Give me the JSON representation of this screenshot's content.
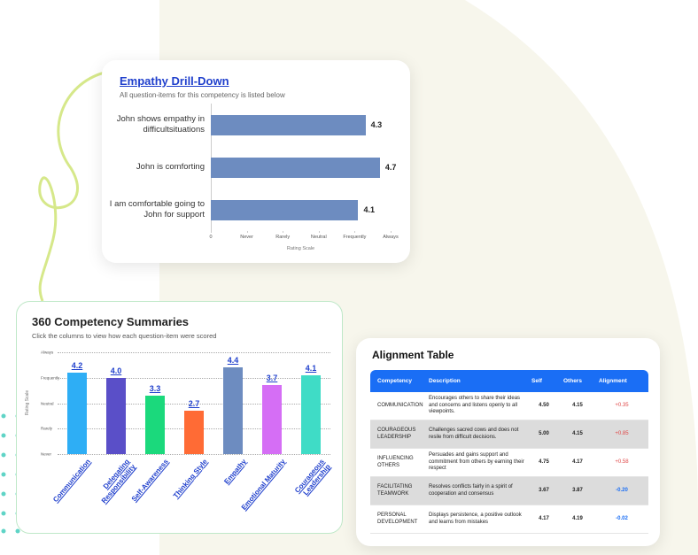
{
  "chart_data": [
    {
      "type": "hbar",
      "title": "Empathy Drill-Down",
      "subtitle": "All question-items for this competency is listed below",
      "categories": [
        "John shows empathy in difficultsituations",
        "John is comforting",
        "I am comfortable going to John for support"
      ],
      "values": [
        4.3,
        4.7,
        4.1
      ],
      "color": "#6d8cc0",
      "xlim": [
        0,
        5
      ],
      "xticks": [
        0,
        {
          "value": 1,
          "label": "Never"
        },
        {
          "value": 2,
          "label": "Rarely"
        },
        {
          "value": 3,
          "label": "Neutral"
        },
        {
          "value": 4,
          "label": "Frequently"
        },
        {
          "value": 5,
          "label": "Always"
        }
      ],
      "xlabel": "Rating Scale"
    },
    {
      "type": "bar",
      "title": "360 Competency Summaries",
      "subtitle": "Click the columns to view how each question-item were scored",
      "categories": [
        "Communication",
        "Delegating Responsibility",
        "Self-Awareness",
        "Thinking Style",
        "Empathy",
        "Emotional Maturity",
        "Courageous Leadership"
      ],
      "values": [
        4.2,
        4.0,
        3.3,
        2.7,
        4.4,
        3.7,
        4.1
      ],
      "value_labels": [
        "4.2",
        "4.0",
        "3.3",
        "2.7",
        "4.4",
        "3.7",
        "4.1"
      ],
      "colors": [
        "#2eaef5",
        "#5a4fc8",
        "#1bd97c",
        "#ff6b35",
        "#6d8cc0",
        "#d56ef5",
        "#3fdcc6"
      ],
      "ylim": [
        1,
        5
      ],
      "yticks": [
        {
          "value": 1,
          "label": "Never"
        },
        {
          "value": 2,
          "label": "Rarely"
        },
        {
          "value": 3,
          "label": "Neutral"
        },
        {
          "value": 4,
          "label": "Frequently"
        },
        {
          "value": 5,
          "label": "Always"
        }
      ],
      "ylabel": "Rating Scale",
      "grid": true
    }
  ],
  "alignment_table": {
    "title": "Alignment Table",
    "columns": [
      "Competency",
      "Description",
      "Self",
      "Others",
      "Alignment"
    ],
    "rows": [
      [
        "COMMUNICATION",
        "Encourages others to share their ideas and concerns and listens openly to all viewpoints.",
        "4.50",
        "4.15",
        "+0.35"
      ],
      [
        "COURAGEOUS LEADERSHIP",
        "Challenges sacred cows and does not resile from difficult decisions.",
        "5.00",
        "4.15",
        "+0.85"
      ],
      [
        "INFLUENCING OTHERS",
        "Persuades and gains support and commitment from others by earning their respect",
        "4.75",
        "4.17",
        "+0.58"
      ],
      [
        "FACILITATING TEAMWORK",
        "Resolves conflicts fairly in a spirit of cooperation and consensus",
        "3.67",
        "3.87",
        "-0.20"
      ],
      [
        "PERSONAL DEVELOPMENT",
        "Displays persistence, a positive outlook and learns from mistakes",
        "4.17",
        "4.19",
        "-0.02"
      ]
    ]
  }
}
